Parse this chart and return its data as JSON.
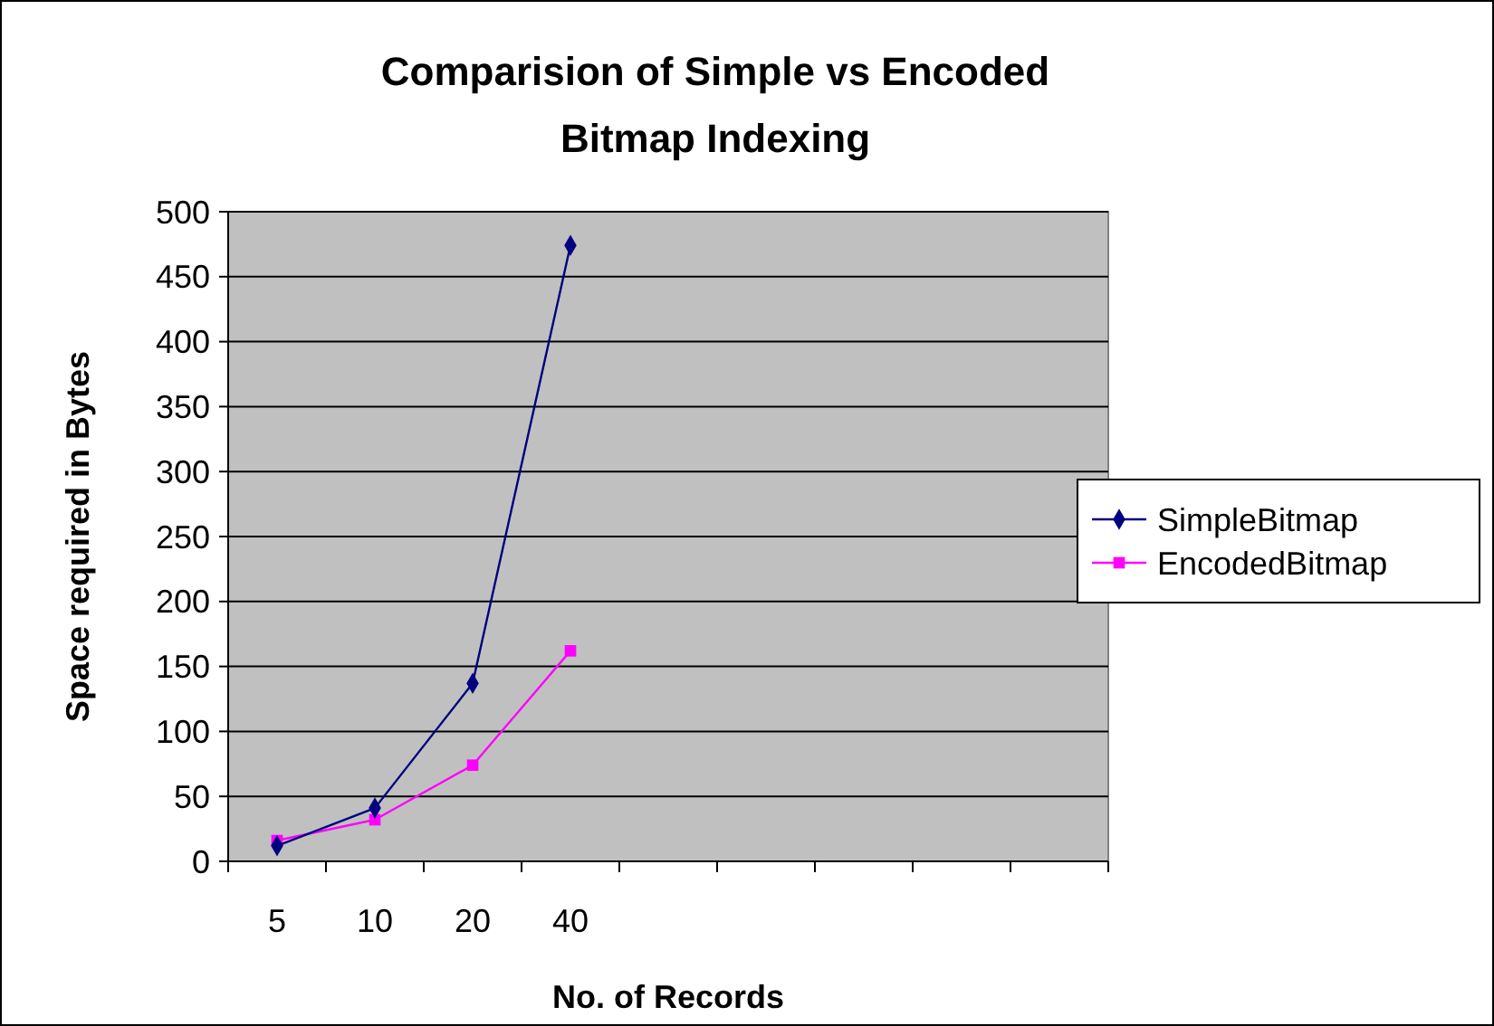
{
  "chart_data": {
    "type": "line",
    "title": "Comparision of Simple vs Encoded Bitmap Indexing",
    "xlabel": "No. of Records",
    "ylabel": "Space required in Bytes",
    "categories": [
      "5",
      "10",
      "20",
      "40",
      null,
      null,
      null,
      null,
      null
    ],
    "series": [
      {
        "name": "SimpleBitmap",
        "color": "#000080",
        "marker": "diamond",
        "values": [
          12,
          41,
          137,
          474,
          null,
          null,
          null,
          null,
          null
        ]
      },
      {
        "name": "EncodedBitmap",
        "color": "#ff00ff",
        "marker": "square",
        "values": [
          16,
          32,
          74,
          162,
          null,
          null,
          null,
          null,
          null
        ]
      }
    ],
    "ylim": [
      0,
      500
    ],
    "yticks": [
      0,
      50,
      100,
      150,
      200,
      250,
      300,
      350,
      400,
      450,
      500
    ],
    "grid": "y",
    "legend": "right"
  }
}
